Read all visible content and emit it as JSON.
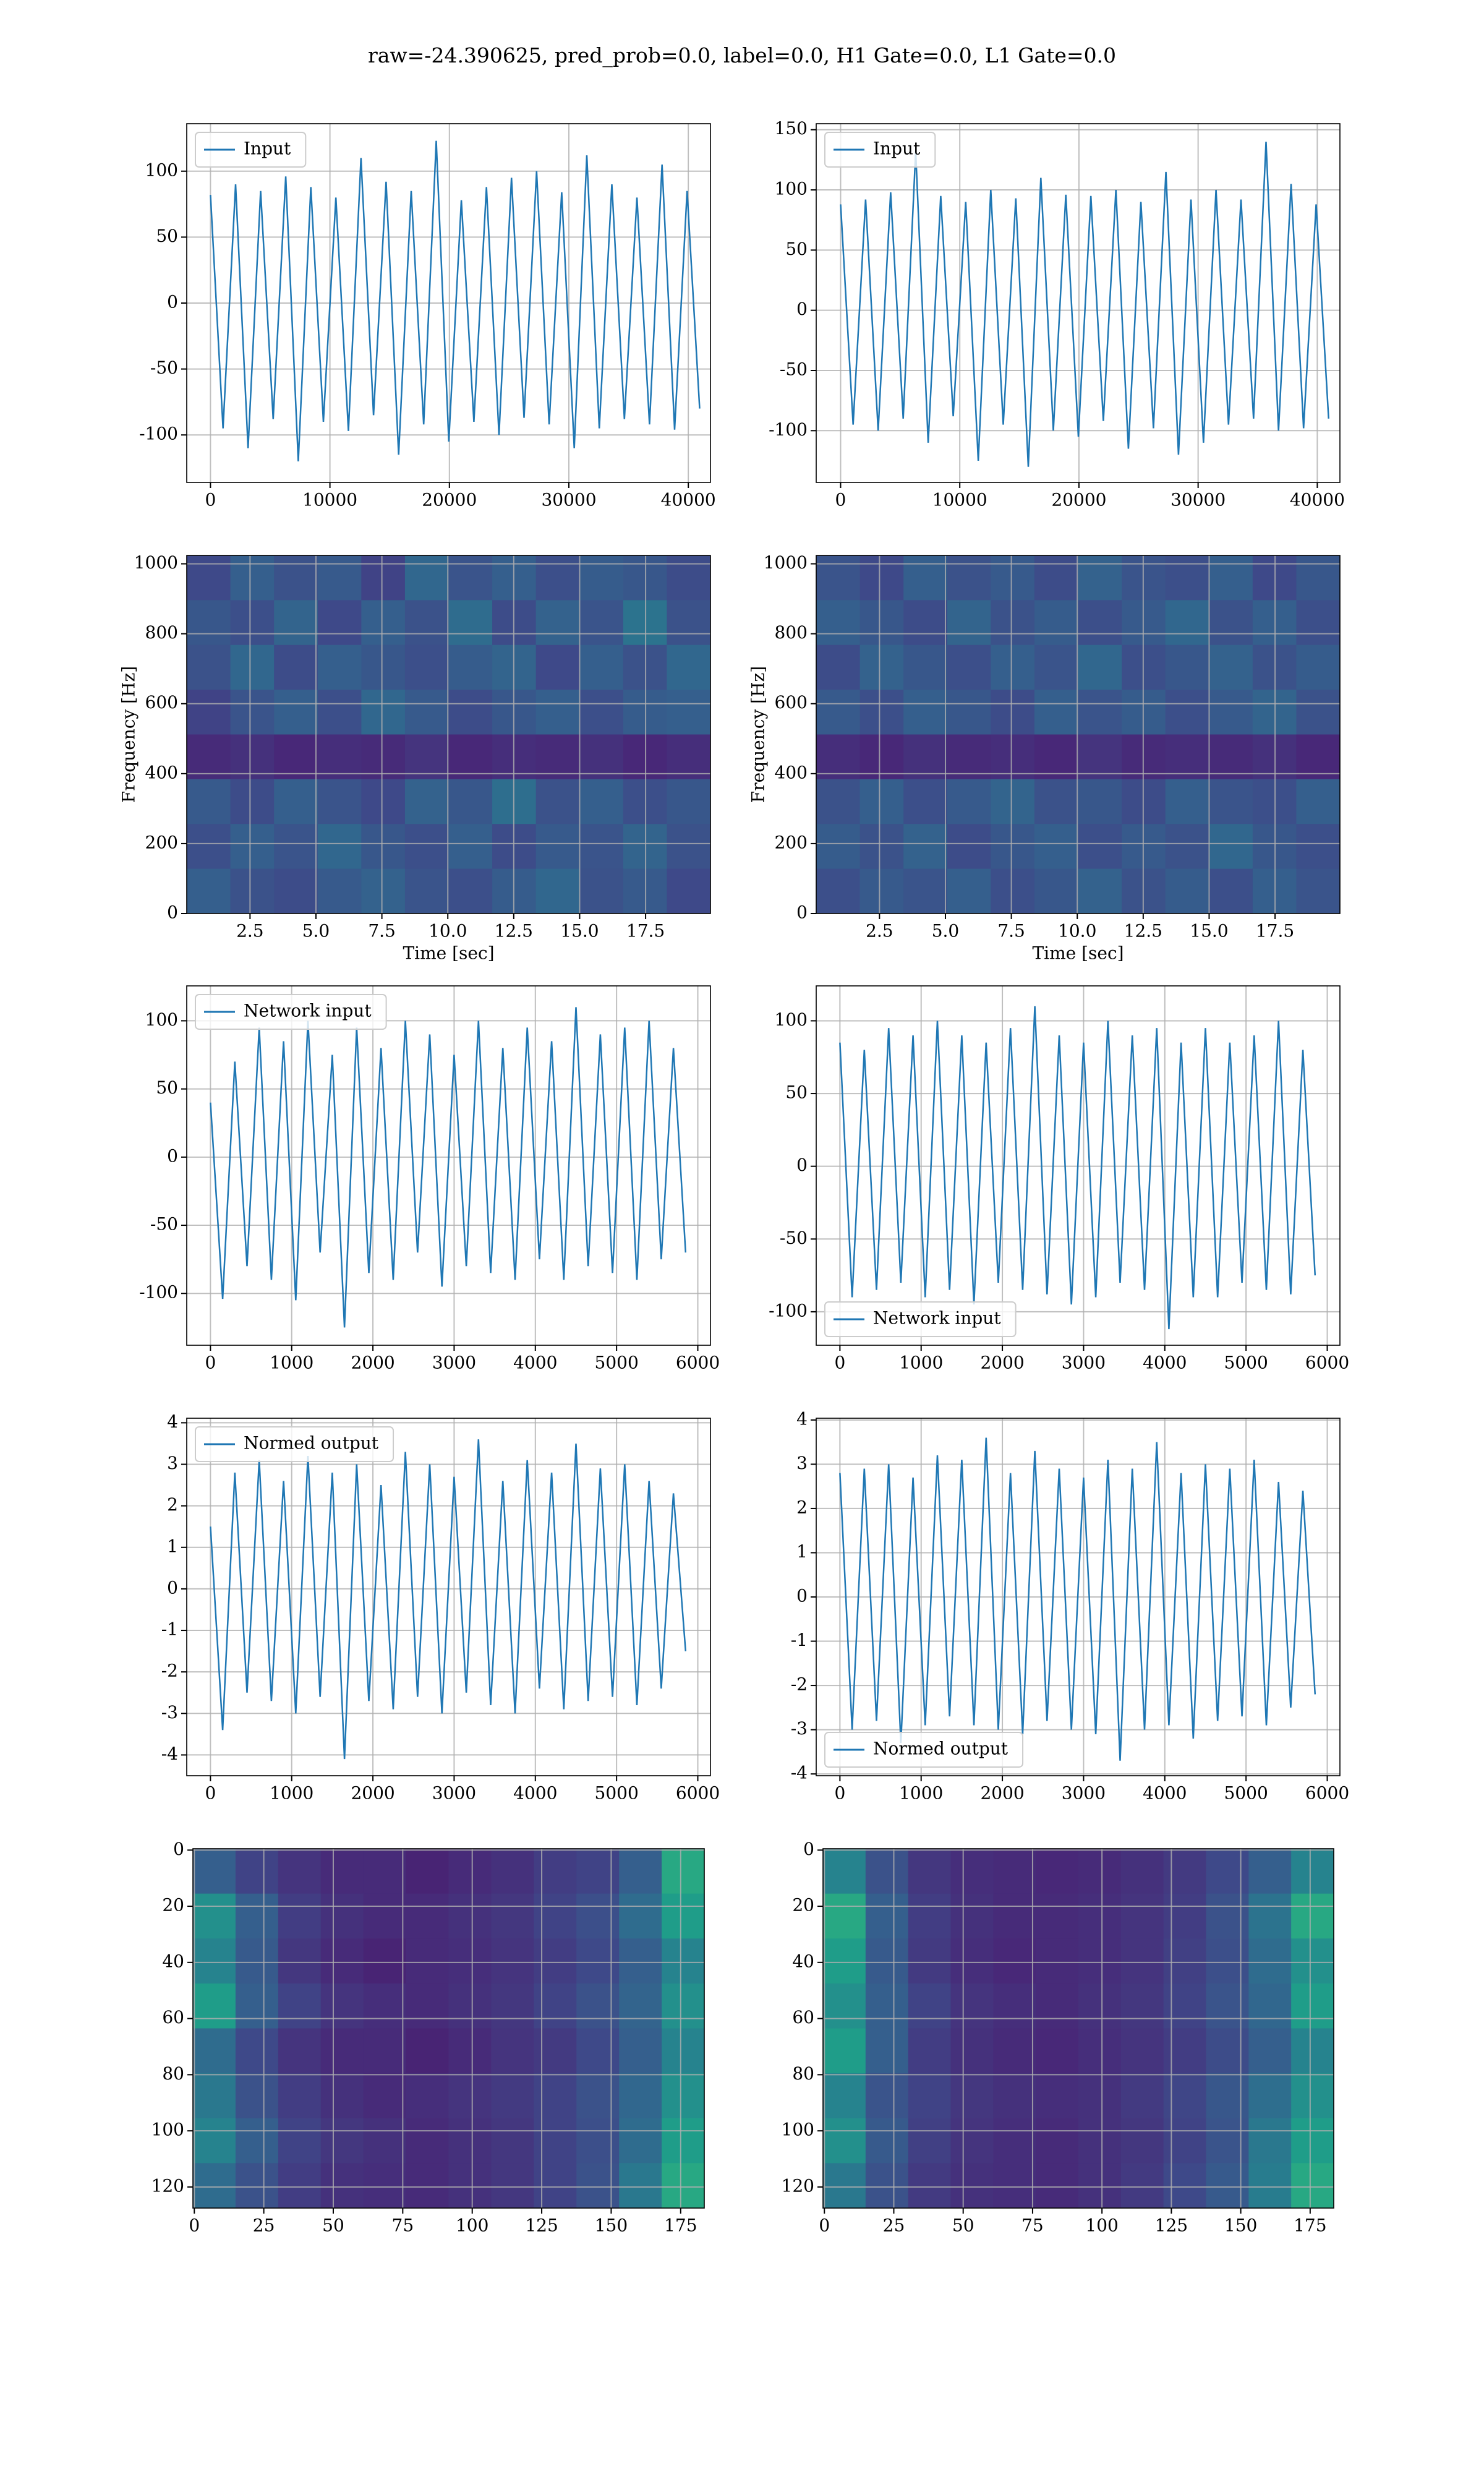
{
  "title": "raw=-24.390625, pred_prob=0.0, label=0.0, H1 Gate=0.0, L1 Gate=0.0",
  "chart_data": [
    {
      "type": "line",
      "grid": true,
      "legend": "upper left",
      "x": [
        0,
        1050,
        2100,
        3150,
        4200,
        5250,
        6300,
        7350,
        8400,
        9450,
        10500,
        11550,
        12600,
        13650,
        14700,
        15750,
        16800,
        17850,
        18900,
        19950,
        21000,
        22050,
        23100,
        24150,
        25200,
        26250,
        27300,
        28350,
        29400,
        30450,
        31500,
        32550,
        33600,
        34650,
        35700,
        36750,
        37800,
        38850,
        39900,
        40950
      ],
      "series": [
        {
          "name": "Input",
          "color": "#1f77b4",
          "values": [
            82,
            -95,
            90,
            -110,
            85,
            -88,
            96,
            -120,
            88,
            -90,
            80,
            -97,
            110,
            -85,
            92,
            -115,
            85,
            -92,
            123,
            -105,
            78,
            -90,
            88,
            -100,
            95,
            -87,
            100,
            -92,
            84,
            -110,
            112,
            -95,
            90,
            -88,
            80,
            -92,
            105,
            -96,
            85,
            -80
          ]
        }
      ],
      "xlim": [
        -1987,
        41854
      ],
      "ylim": [
        -136,
        136
      ],
      "xticks": [
        0,
        10000,
        20000,
        30000,
        40000
      ],
      "yticks": [
        -100,
        -50,
        0,
        50,
        100
      ]
    },
    {
      "type": "line",
      "grid": true,
      "legend": "upper left",
      "x": [
        0,
        1050,
        2100,
        3150,
        4200,
        5250,
        6300,
        7350,
        8400,
        9450,
        10500,
        11550,
        12600,
        13650,
        14700,
        15750,
        16800,
        17850,
        18900,
        19950,
        21000,
        22050,
        23100,
        24150,
        25200,
        26250,
        27300,
        28350,
        29400,
        30450,
        31500,
        32550,
        33600,
        34650,
        35700,
        36750,
        37800,
        38850,
        39900,
        40950
      ],
      "series": [
        {
          "name": "Input",
          "color": "#1f77b4",
          "values": [
            88,
            -95,
            92,
            -100,
            98,
            -90,
            132,
            -110,
            95,
            -88,
            90,
            -125,
            100,
            -95,
            93,
            -130,
            110,
            -100,
            96,
            -105,
            95,
            -92,
            100,
            -115,
            90,
            -98,
            115,
            -120,
            92,
            -110,
            100,
            -95,
            92,
            -90,
            140,
            -100,
            105,
            -98,
            88,
            -90
          ]
        }
      ],
      "xlim": [
        -2048,
        41900
      ],
      "ylim": [
        -143,
        155
      ],
      "xticks": [
        0,
        10000,
        20000,
        30000,
        40000
      ],
      "yticks": [
        -100,
        -50,
        0,
        50,
        100,
        150
      ]
    },
    {
      "type": "heatmap",
      "grid": true,
      "colormap": "viridis",
      "xlabel": "Time [sec]",
      "ylabel": "Frequency [Hz]",
      "xlim": [
        0.1,
        19.96
      ],
      "ylim": [
        0,
        1024
      ],
      "xticks": [
        2.5,
        {
          "value": 5,
          "label": "5.0"
        },
        7.5,
        {
          "value": 10,
          "label": "10.0"
        },
        12.5,
        {
          "value": 15,
          "label": "15.0"
        },
        17.5
      ],
      "yticks": [
        0,
        200,
        400,
        600,
        800,
        1000
      ],
      "z": [
        [
          0.22,
          0.3,
          0.25,
          0.28,
          0.2,
          0.33,
          0.26,
          0.3,
          0.24,
          0.29,
          0.27,
          0.23
        ],
        [
          0.27,
          0.24,
          0.32,
          0.22,
          0.3,
          0.25,
          0.35,
          0.23,
          0.31,
          0.26,
          0.38,
          0.25
        ],
        [
          0.25,
          0.33,
          0.23,
          0.3,
          0.27,
          0.24,
          0.29,
          0.32,
          0.22,
          0.3,
          0.25,
          0.33
        ],
        [
          0.2,
          0.26,
          0.3,
          0.24,
          0.33,
          0.28,
          0.23,
          0.27,
          0.3,
          0.24,
          0.29,
          0.3
        ],
        [
          0.12,
          0.14,
          0.11,
          0.13,
          0.12,
          0.15,
          0.11,
          0.13,
          0.12,
          0.14,
          0.11,
          0.13
        ],
        [
          0.28,
          0.23,
          0.3,
          0.26,
          0.22,
          0.31,
          0.27,
          0.36,
          0.25,
          0.3,
          0.24,
          0.27
        ],
        [
          0.24,
          0.3,
          0.26,
          0.33,
          0.27,
          0.24,
          0.3,
          0.23,
          0.28,
          0.26,
          0.32,
          0.25
        ],
        [
          0.3,
          0.25,
          0.23,
          0.28,
          0.31,
          0.26,
          0.24,
          0.29,
          0.33,
          0.25,
          0.28,
          0.22
        ]
      ]
    },
    {
      "type": "heatmap",
      "grid": true,
      "colormap": "viridis",
      "xlabel": "Time [sec]",
      "ylabel": "Frequency [Hz]",
      "xlim": [
        0.1,
        19.96
      ],
      "ylim": [
        0,
        1024
      ],
      "xticks": [
        2.5,
        {
          "value": 5,
          "label": "5.0"
        },
        7.5,
        {
          "value": 10,
          "label": "10.0"
        },
        12.5,
        {
          "value": 15,
          "label": "15.0"
        },
        17.5
      ],
      "yticks": [
        0,
        200,
        400,
        600,
        800,
        1000
      ],
      "z": [
        [
          0.26,
          0.22,
          0.3,
          0.25,
          0.28,
          0.23,
          0.31,
          0.26,
          0.24,
          0.3,
          0.22,
          0.27
        ],
        [
          0.3,
          0.27,
          0.23,
          0.32,
          0.25,
          0.29,
          0.24,
          0.28,
          0.33,
          0.25,
          0.3,
          0.24
        ],
        [
          0.23,
          0.31,
          0.27,
          0.24,
          0.3,
          0.26,
          0.33,
          0.24,
          0.27,
          0.31,
          0.25,
          0.29
        ],
        [
          0.28,
          0.24,
          0.3,
          0.27,
          0.23,
          0.3,
          0.26,
          0.29,
          0.24,
          0.28,
          0.32,
          0.25
        ],
        [
          0.13,
          0.11,
          0.14,
          0.12,
          0.13,
          0.11,
          0.15,
          0.12,
          0.13,
          0.12,
          0.14,
          0.11
        ],
        [
          0.25,
          0.3,
          0.24,
          0.28,
          0.32,
          0.25,
          0.27,
          0.23,
          0.3,
          0.26,
          0.24,
          0.3
        ],
        [
          0.29,
          0.25,
          0.31,
          0.23,
          0.27,
          0.3,
          0.24,
          0.28,
          0.25,
          0.33,
          0.27,
          0.24
        ],
        [
          0.24,
          0.28,
          0.26,
          0.3,
          0.24,
          0.27,
          0.31,
          0.25,
          0.29,
          0.24,
          0.3,
          0.26
        ]
      ]
    },
    {
      "type": "line",
      "grid": true,
      "legend": "upper left",
      "x": [
        0,
        150,
        300,
        450,
        600,
        750,
        900,
        1050,
        1200,
        1350,
        1500,
        1650,
        1800,
        1950,
        2100,
        2250,
        2400,
        2550,
        2700,
        2850,
        3000,
        3150,
        3300,
        3450,
        3600,
        3750,
        3900,
        4050,
        4200,
        4350,
        4500,
        4650,
        4800,
        4950,
        5100,
        5250,
        5400,
        5550,
        5700,
        5850
      ],
      "series": [
        {
          "name": "Network input",
          "color": "#1f77b4",
          "values": [
            40,
            -104,
            70,
            -80,
            95,
            -90,
            85,
            -105,
            100,
            -70,
            75,
            -125,
            95,
            -85,
            80,
            -90,
            100,
            -70,
            90,
            -95,
            75,
            -80,
            100,
            -85,
            80,
            -90,
            95,
            -75,
            85,
            -90,
            110,
            -80,
            90,
            -85,
            95,
            -90,
            100,
            -75,
            80,
            -70
          ]
        }
      ],
      "xlim": [
        -292,
        6156
      ],
      "ylim": [
        -138,
        125.6
      ],
      "xticks": [
        0,
        1000,
        2000,
        3000,
        4000,
        5000,
        6000
      ],
      "yticks": [
        -100,
        -50,
        0,
        50,
        100
      ]
    },
    {
      "type": "line",
      "grid": true,
      "legend": "lower left",
      "x": [
        0,
        150,
        300,
        450,
        600,
        750,
        900,
        1050,
        1200,
        1350,
        1500,
        1650,
        1800,
        1950,
        2100,
        2250,
        2400,
        2550,
        2700,
        2850,
        3000,
        3150,
        3300,
        3450,
        3600,
        3750,
        3900,
        4050,
        4200,
        4350,
        4500,
        4650,
        4800,
        4950,
        5100,
        5250,
        5400,
        5550,
        5700,
        5850
      ],
      "series": [
        {
          "name": "Network input",
          "color": "#1f77b4",
          "values": [
            85,
            -90,
            80,
            -85,
            95,
            -80,
            90,
            -90,
            100,
            -85,
            90,
            -95,
            85,
            -80,
            95,
            -85,
            110,
            -88,
            90,
            -95,
            85,
            -90,
            100,
            -80,
            90,
            -85,
            95,
            -112,
            85,
            -90,
            95,
            -90,
            85,
            -80,
            90,
            -85,
            100,
            -88,
            80,
            -75
          ]
        }
      ],
      "xlim": [
        -292,
        6156
      ],
      "ylim": [
        -123,
        124
      ],
      "xticks": [
        0,
        1000,
        2000,
        3000,
        4000,
        5000,
        6000
      ],
      "yticks": [
        -100,
        -50,
        0,
        50,
        100
      ]
    },
    {
      "type": "line",
      "grid": true,
      "legend": "upper left",
      "x": [
        0,
        150,
        300,
        450,
        600,
        750,
        900,
        1050,
        1200,
        1350,
        1500,
        1650,
        1800,
        1950,
        2100,
        2250,
        2400,
        2550,
        2700,
        2850,
        3000,
        3150,
        3300,
        3450,
        3600,
        3750,
        3900,
        4050,
        4200,
        4350,
        4500,
        4650,
        4800,
        4950,
        5100,
        5250,
        5400,
        5550,
        5700,
        5850
      ],
      "series": [
        {
          "name": "Normed output",
          "color": "#1f77b4",
          "values": [
            1.5,
            -3.4,
            2.8,
            -2.5,
            3.1,
            -2.7,
            2.6,
            -3.0,
            3.2,
            -2.6,
            2.8,
            -4.1,
            3.0,
            -2.7,
            2.5,
            -2.9,
            3.3,
            -2.6,
            3.0,
            -3.0,
            2.7,
            -2.5,
            3.6,
            -2.8,
            2.6,
            -3.0,
            3.1,
            -2.4,
            2.8,
            -2.9,
            3.5,
            -2.7,
            2.9,
            -2.6,
            3.0,
            -2.8,
            2.6,
            -2.4,
            2.3,
            -1.5
          ]
        }
      ],
      "xlim": [
        -292,
        6156
      ],
      "ylim": [
        -4.5,
        4.11
      ],
      "xticks": [
        0,
        1000,
        2000,
        3000,
        4000,
        5000,
        6000
      ],
      "yticks": [
        -4,
        -3,
        -2,
        -1,
        0,
        1,
        2,
        3,
        4
      ]
    },
    {
      "type": "line",
      "grid": true,
      "legend": "lower left",
      "x": [
        0,
        150,
        300,
        450,
        600,
        750,
        900,
        1050,
        1200,
        1350,
        1500,
        1650,
        1800,
        1950,
        2100,
        2250,
        2400,
        2550,
        2700,
        2850,
        3000,
        3150,
        3300,
        3450,
        3600,
        3750,
        3900,
        4050,
        4200,
        4350,
        4500,
        4650,
        4800,
        4950,
        5100,
        5250,
        5400,
        5550,
        5700,
        5850
      ],
      "series": [
        {
          "name": "Normed output",
          "color": "#1f77b4",
          "values": [
            2.8,
            -3.0,
            2.9,
            -2.8,
            3.0,
            -3.3,
            2.7,
            -2.9,
            3.2,
            -2.7,
            3.1,
            -2.9,
            3.6,
            -3.0,
            2.8,
            -3.1,
            3.3,
            -2.8,
            2.9,
            -3.0,
            2.7,
            -3.1,
            3.1,
            -3.7,
            2.9,
            -3.0,
            3.5,
            -2.9,
            2.8,
            -3.2,
            3.0,
            -2.8,
            2.9,
            -2.7,
            3.1,
            -2.9,
            2.6,
            -2.5,
            2.4,
            -2.2
          ]
        }
      ],
      "xlim": [
        -292,
        6156
      ],
      "ylim": [
        -4.04,
        4.04
      ],
      "xticks": [
        0,
        1000,
        2000,
        3000,
        4000,
        5000,
        6000
      ],
      "yticks": [
        -4,
        -3,
        -2,
        -1,
        0,
        1,
        2,
        3,
        4
      ]
    },
    {
      "type": "heatmap",
      "grid": true,
      "colormap": "viridis",
      "xlim": [
        -0.5,
        183.5
      ],
      "ylim": [
        127.5,
        -0.5
      ],
      "xticks": [
        0,
        25,
        50,
        75,
        100,
        125,
        150,
        175
      ],
      "yticks": [
        0,
        20,
        40,
        60,
        80,
        100,
        120
      ],
      "z": [
        [
          0.3,
          0.2,
          0.15,
          0.12,
          0.12,
          0.1,
          0.12,
          0.14,
          0.18,
          0.2,
          0.3,
          0.6
        ],
        [
          0.5,
          0.3,
          0.18,
          0.14,
          0.12,
          0.12,
          0.14,
          0.16,
          0.2,
          0.24,
          0.35,
          0.55
        ],
        [
          0.45,
          0.28,
          0.16,
          0.12,
          0.1,
          0.12,
          0.13,
          0.15,
          0.18,
          0.22,
          0.3,
          0.45
        ],
        [
          0.55,
          0.3,
          0.2,
          0.15,
          0.13,
          0.12,
          0.14,
          0.16,
          0.2,
          0.25,
          0.32,
          0.5
        ],
        [
          0.35,
          0.22,
          0.15,
          0.12,
          0.12,
          0.1,
          0.12,
          0.15,
          0.17,
          0.22,
          0.3,
          0.45
        ],
        [
          0.4,
          0.25,
          0.18,
          0.14,
          0.12,
          0.13,
          0.15,
          0.17,
          0.2,
          0.25,
          0.33,
          0.5
        ],
        [
          0.45,
          0.3,
          0.2,
          0.16,
          0.14,
          0.12,
          0.14,
          0.16,
          0.2,
          0.24,
          0.35,
          0.55
        ],
        [
          0.35,
          0.25,
          0.18,
          0.14,
          0.13,
          0.12,
          0.14,
          0.16,
          0.2,
          0.25,
          0.4,
          0.6
        ]
      ]
    },
    {
      "type": "heatmap",
      "grid": true,
      "colormap": "viridis",
      "xlim": [
        -0.5,
        183.5
      ],
      "ylim": [
        127.5,
        -0.5
      ],
      "xticks": [
        0,
        25,
        50,
        75,
        100,
        125,
        150,
        175
      ],
      "yticks": [
        0,
        20,
        40,
        60,
        80,
        100,
        120
      ],
      "z": [
        [
          0.45,
          0.25,
          0.16,
          0.13,
          0.12,
          0.11,
          0.12,
          0.14,
          0.17,
          0.22,
          0.3,
          0.45
        ],
        [
          0.6,
          0.3,
          0.18,
          0.14,
          0.12,
          0.12,
          0.13,
          0.15,
          0.18,
          0.25,
          0.38,
          0.6
        ],
        [
          0.55,
          0.28,
          0.17,
          0.13,
          0.11,
          0.12,
          0.13,
          0.15,
          0.19,
          0.24,
          0.35,
          0.5
        ],
        [
          0.5,
          0.3,
          0.2,
          0.15,
          0.13,
          0.12,
          0.14,
          0.16,
          0.2,
          0.26,
          0.33,
          0.55
        ],
        [
          0.55,
          0.3,
          0.18,
          0.14,
          0.12,
          0.11,
          0.13,
          0.15,
          0.18,
          0.23,
          0.3,
          0.45
        ],
        [
          0.45,
          0.26,
          0.2,
          0.16,
          0.14,
          0.13,
          0.14,
          0.17,
          0.21,
          0.27,
          0.36,
          0.5
        ],
        [
          0.5,
          0.28,
          0.19,
          0.15,
          0.13,
          0.12,
          0.14,
          0.16,
          0.2,
          0.26,
          0.4,
          0.55
        ],
        [
          0.4,
          0.25,
          0.17,
          0.14,
          0.13,
          0.12,
          0.14,
          0.17,
          0.22,
          0.28,
          0.42,
          0.6
        ]
      ]
    }
  ]
}
